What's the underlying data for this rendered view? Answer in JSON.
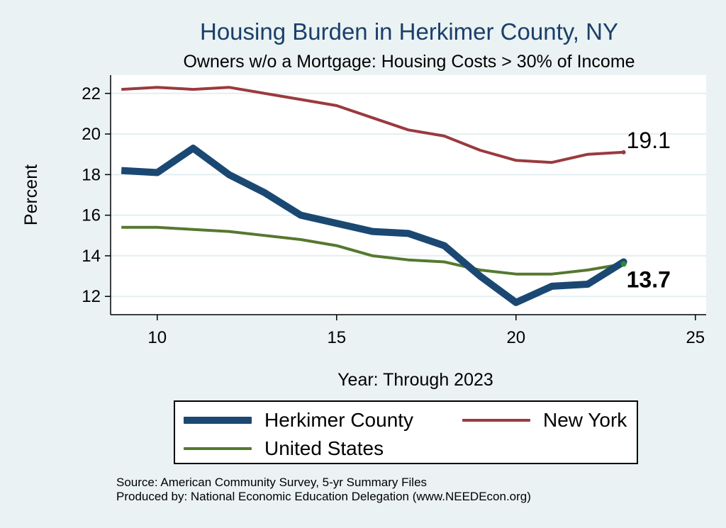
{
  "chart_data": {
    "type": "line",
    "title": "Housing Burden in Herkimer County, NY",
    "subtitle": "Owners w/o a Mortgage: Housing Costs > 30% of Income",
    "xlabel": "Year: Through 2023",
    "ylabel": "Percent",
    "xlim": [
      8.7,
      25.3
    ],
    "ylim": [
      11.1,
      22.9
    ],
    "xticks": [
      10,
      15,
      20,
      25
    ],
    "yticks": [
      12,
      14,
      16,
      18,
      20,
      22
    ],
    "grid": true,
    "legend_position": "bottom",
    "series": [
      {
        "name": "Herkimer County",
        "color": "#1a4872",
        "x": [
          9,
          10,
          11,
          12,
          13,
          14,
          15,
          16,
          17,
          18,
          19,
          20,
          21,
          22,
          23
        ],
        "values": [
          18.2,
          18.1,
          19.3,
          18.0,
          17.1,
          16.0,
          15.6,
          15.2,
          15.1,
          14.5,
          13.0,
          11.7,
          12.5,
          12.6,
          13.7
        ],
        "end_label": "13.7"
      },
      {
        "name": "New York",
        "color": "#9a3a3e",
        "x": [
          9,
          10,
          11,
          12,
          13,
          14,
          15,
          16,
          17,
          18,
          19,
          20,
          21,
          22,
          23
        ],
        "values": [
          22.2,
          22.3,
          22.2,
          22.3,
          22.0,
          21.7,
          21.4,
          20.8,
          20.2,
          19.9,
          19.2,
          18.7,
          18.6,
          19.0,
          19.1
        ],
        "end_label": "19.1"
      },
      {
        "name": "United States",
        "color": "#55782f",
        "x": [
          9,
          10,
          11,
          12,
          13,
          14,
          15,
          16,
          17,
          18,
          19,
          20,
          21,
          22,
          23
        ],
        "values": [
          15.4,
          15.4,
          15.3,
          15.2,
          15.0,
          14.8,
          14.5,
          14.0,
          13.8,
          13.7,
          13.3,
          13.1,
          13.1,
          13.3,
          13.6
        ]
      }
    ]
  },
  "footer": {
    "source": "Source: American Community Survey, 5-yr Summary Files",
    "produced_by": "Produced by: National Economic Education Delegation (www.NEEDEcon.org)"
  }
}
